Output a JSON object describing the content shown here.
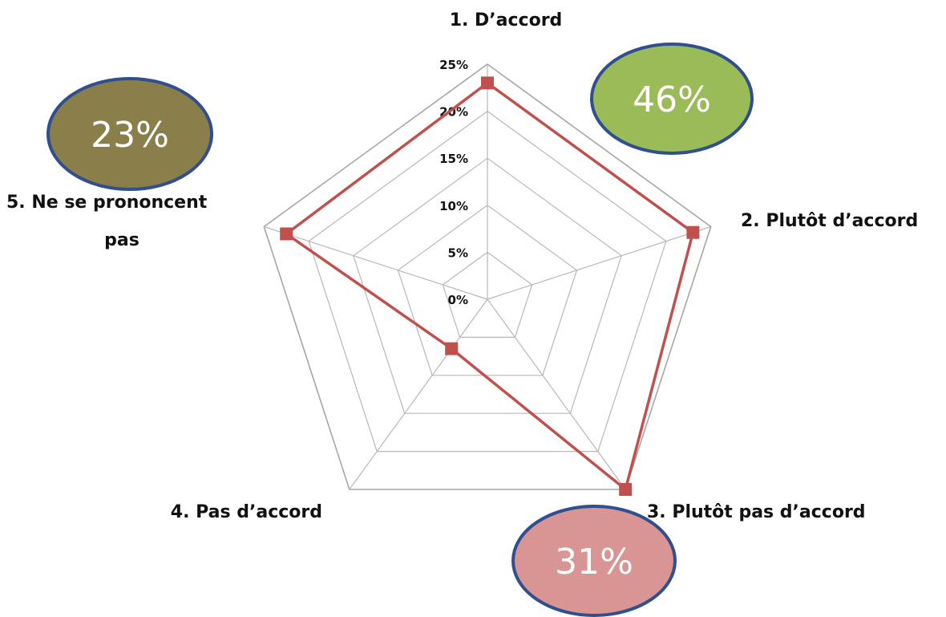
{
  "chart_data": {
    "type": "radar",
    "categories": [
      "1. D’accord",
      "2. Plutôt d’accord",
      "3. Plutôt pas d’accord",
      "4. Pas d’accord",
      "5. Ne se prononcent pas"
    ],
    "series": [
      {
        "values": [
          23,
          23,
          25,
          6.5,
          22.5
        ],
        "color": "#c0504d"
      }
    ],
    "rlim": [
      0,
      25
    ],
    "ticks": [
      "0%",
      "5%",
      "10%",
      "15%",
      "20%",
      "25%"
    ],
    "grid": true,
    "annotations": [
      {
        "text": "46%",
        "fill": "#9bbb59",
        "near": "2. Plutôt d’accord"
      },
      {
        "text": "31%",
        "fill": "#d99594",
        "near": "3. Plutôt pas d’accord"
      },
      {
        "text": "23%",
        "fill": "#8a7f4a",
        "near": "5. Ne se prononcent pas"
      }
    ],
    "border_color": "#2f4f8f"
  }
}
